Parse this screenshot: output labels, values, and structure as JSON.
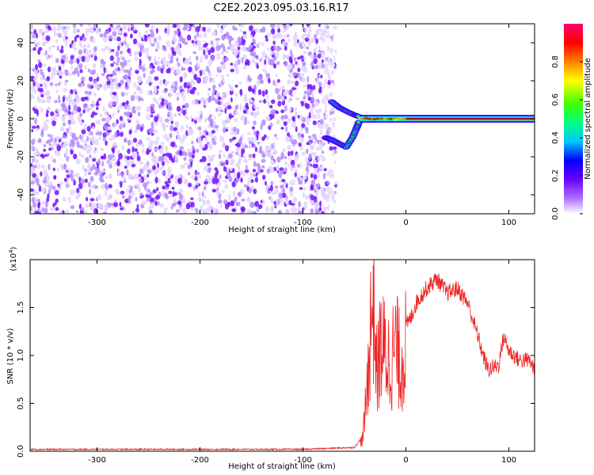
{
  "title": "C2E2.2023.095.03.16.R17",
  "chart_data": [
    {
      "type": "heatmap",
      "xlabel": "Height of straight line (km)",
      "ylabel": "Frequency (Hz)",
      "xlim": [
        -365,
        125
      ],
      "ylim": [
        -50,
        50
      ],
      "xticks": [
        "-300",
        "-200",
        "-100",
        "0",
        "100"
      ],
      "xtick_values": [
        -300,
        -200,
        -100,
        0,
        100
      ],
      "yticks": [
        "-40",
        "-20",
        "0",
        "20",
        "40"
      ],
      "ytick_values": [
        -40,
        -20,
        0,
        20,
        40
      ],
      "colorbar": {
        "label": "Normalized spectral amplitude",
        "range": [
          0,
          1
        ],
        "ticks": [
          "0.0",
          "0.2",
          "0.4",
          "0.6",
          "0.8"
        ],
        "tick_values": [
          0.0,
          0.2,
          0.4,
          0.6,
          0.8
        ],
        "colormap": [
          "#ffffff",
          "#7b00ff",
          "#0000ff",
          "#00e5ff",
          "#00ff00",
          "#ffff00",
          "#ff8000",
          "#ff0000",
          "#ff0080"
        ]
      },
      "features": {
        "noise_region_x": [
          -365,
          -78
        ],
        "noise_amplitude": 0.2,
        "lower_branch": [
          [
            -78,
            -10
          ],
          [
            -72,
            -11
          ],
          [
            -65,
            -13
          ],
          [
            -58,
            -15
          ],
          [
            -52,
            -10
          ],
          [
            -48,
            -5
          ],
          [
            -45,
            -1
          ]
        ],
        "upper_branch": [
          [
            -72,
            9
          ],
          [
            -65,
            6
          ],
          [
            -58,
            4
          ],
          [
            -50,
            2
          ],
          [
            -45,
            1
          ]
        ],
        "main_line_x": [
          -45,
          125
        ],
        "main_line_freq": 0,
        "peak_segment_x": [
          0,
          125
        ]
      }
    },
    {
      "type": "line",
      "xlabel": "Height of straight line (km)",
      "ylabel": "SNR (10 * v/v)",
      "y_exponent_label": "(x10",
      "y_exponent": "4",
      "y_exponent_close": ")",
      "xlim": [
        -365,
        125
      ],
      "ylim": [
        0,
        2.0
      ],
      "xticks": [
        "-300",
        "-200",
        "-100",
        "0",
        "100"
      ],
      "xtick_values": [
        -300,
        -200,
        -100,
        0,
        100
      ],
      "yticks": [
        "0.0",
        "0.5",
        "1.0",
        "1.5"
      ],
      "ytick_values": [
        0.0,
        0.5,
        1.0,
        1.5
      ],
      "line_color": "#ee2222",
      "series": [
        {
          "x": [
            -365,
            -100,
            -50,
            -42,
            -38,
            -35,
            -32,
            -30,
            -28,
            -25,
            -20,
            -15,
            -10,
            -5,
            0,
            5,
            10,
            20,
            30,
            40,
            50,
            60,
            70,
            75,
            80,
            90,
            95,
            100,
            110,
            120,
            125
          ],
          "y": [
            0.02,
            0.02,
            0.04,
            0.15,
            0.7,
            1.4,
            1.9,
            1.5,
            0.9,
            1.3,
            1.2,
            1.1,
            1.3,
            1.05,
            1.3,
            1.4,
            1.55,
            1.7,
            1.8,
            1.65,
            1.7,
            1.55,
            1.2,
            1.0,
            0.85,
            0.9,
            1.2,
            1.05,
            0.95,
            0.95,
            0.85
          ]
        }
      ]
    }
  ]
}
